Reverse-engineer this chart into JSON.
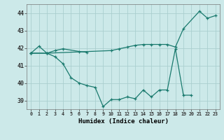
{
  "xlabel": "Humidex (Indice chaleur)",
  "x": [
    0,
    1,
    2,
    3,
    4,
    5,
    6,
    7,
    8,
    9,
    10,
    11,
    12,
    13,
    14,
    15,
    16,
    17,
    18,
    19,
    20,
    21,
    22,
    23
  ],
  "line1_x": [
    0,
    1,
    2,
    3,
    4,
    6,
    7
  ],
  "line1_y": [
    41.7,
    42.1,
    41.7,
    41.85,
    41.95,
    41.8,
    41.75
  ],
  "line2_x": [
    0,
    2,
    3,
    4,
    5,
    6,
    7,
    8,
    9,
    10,
    11,
    12,
    13,
    14,
    15,
    16,
    17,
    18,
    19,
    20
  ],
  "line2_y": [
    41.7,
    41.7,
    41.5,
    41.1,
    40.3,
    40.0,
    39.85,
    39.75,
    38.65,
    39.05,
    39.05,
    39.2,
    39.1,
    39.6,
    39.2,
    39.6,
    39.6,
    41.95,
    39.3,
    39.3
  ],
  "line3_x": [
    0,
    2,
    10,
    11,
    12,
    13,
    14,
    15,
    16,
    17,
    18,
    19,
    21,
    22,
    23
  ],
  "line3_y": [
    41.7,
    41.7,
    41.85,
    41.95,
    42.05,
    42.15,
    42.2,
    42.2,
    42.2,
    42.2,
    42.05,
    43.1,
    44.1,
    43.7,
    43.85
  ],
  "ylim": [
    38.5,
    44.5
  ],
  "xlim": [
    -0.5,
    23.5
  ],
  "yticks": [
    39,
    40,
    41,
    42,
    43,
    44
  ],
  "line_color": "#1a7a6e",
  "bg_color": "#cce9e9",
  "grid_color": "#aacfcf"
}
